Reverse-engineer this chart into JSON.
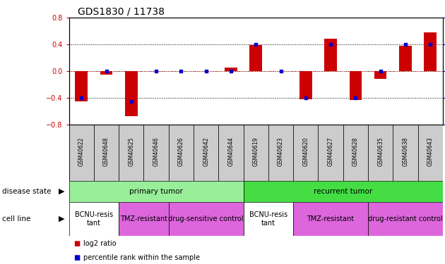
{
  "title": "GDS1830 / 11738",
  "samples": [
    "GSM40622",
    "GSM40648",
    "GSM40625",
    "GSM40646",
    "GSM40626",
    "GSM40642",
    "GSM40644",
    "GSM40619",
    "GSM40623",
    "GSM40620",
    "GSM40627",
    "GSM40628",
    "GSM40635",
    "GSM40638",
    "GSM40643"
  ],
  "log2_ratio": [
    -0.45,
    -0.05,
    -0.67,
    0.0,
    0.0,
    0.0,
    0.05,
    0.39,
    0.0,
    -0.42,
    0.48,
    -0.43,
    -0.12,
    0.38,
    0.58
  ],
  "percentile": [
    25,
    50,
    22,
    50,
    50,
    50,
    50,
    75,
    50,
    25,
    75,
    25,
    50,
    75,
    75
  ],
  "disease_state": [
    {
      "label": "primary tumor",
      "start": 0,
      "end": 7,
      "color": "#99EE99"
    },
    {
      "label": "recurrent tumor",
      "start": 7,
      "end": 15,
      "color": "#44DD44"
    }
  ],
  "cell_line": [
    {
      "label": "BCNU-resis\ntant",
      "start": 0,
      "end": 2,
      "color": "#FFFFFF"
    },
    {
      "label": "TMZ-resistant",
      "start": 2,
      "end": 4,
      "color": "#DD66DD"
    },
    {
      "label": "drug-sensitive control",
      "start": 4,
      "end": 7,
      "color": "#DD66DD"
    },
    {
      "label": "BCNU-resis\ntant",
      "start": 7,
      "end": 9,
      "color": "#FFFFFF"
    },
    {
      "label": "TMZ-resistant",
      "start": 9,
      "end": 12,
      "color": "#DD66DD"
    },
    {
      "label": "drug-resistant control",
      "start": 12,
      "end": 15,
      "color": "#DD66DD"
    }
  ],
  "ylim": [
    -0.8,
    0.8
  ],
  "y2lim": [
    0,
    100
  ],
  "bar_color": "#CC0000",
  "dot_color": "#0000CC",
  "bar_width": 0.5,
  "dot_size": 12,
  "axis_color_left": "#CC0000",
  "axis_color_right": "#0000BB",
  "title_fontsize": 10,
  "tick_fontsize": 7,
  "sample_fontsize": 5.5,
  "label_fontsize": 7.5,
  "annotation_fontsize": 7.5,
  "legend_fontsize": 7,
  "sample_bg_color": "#CCCCCC"
}
